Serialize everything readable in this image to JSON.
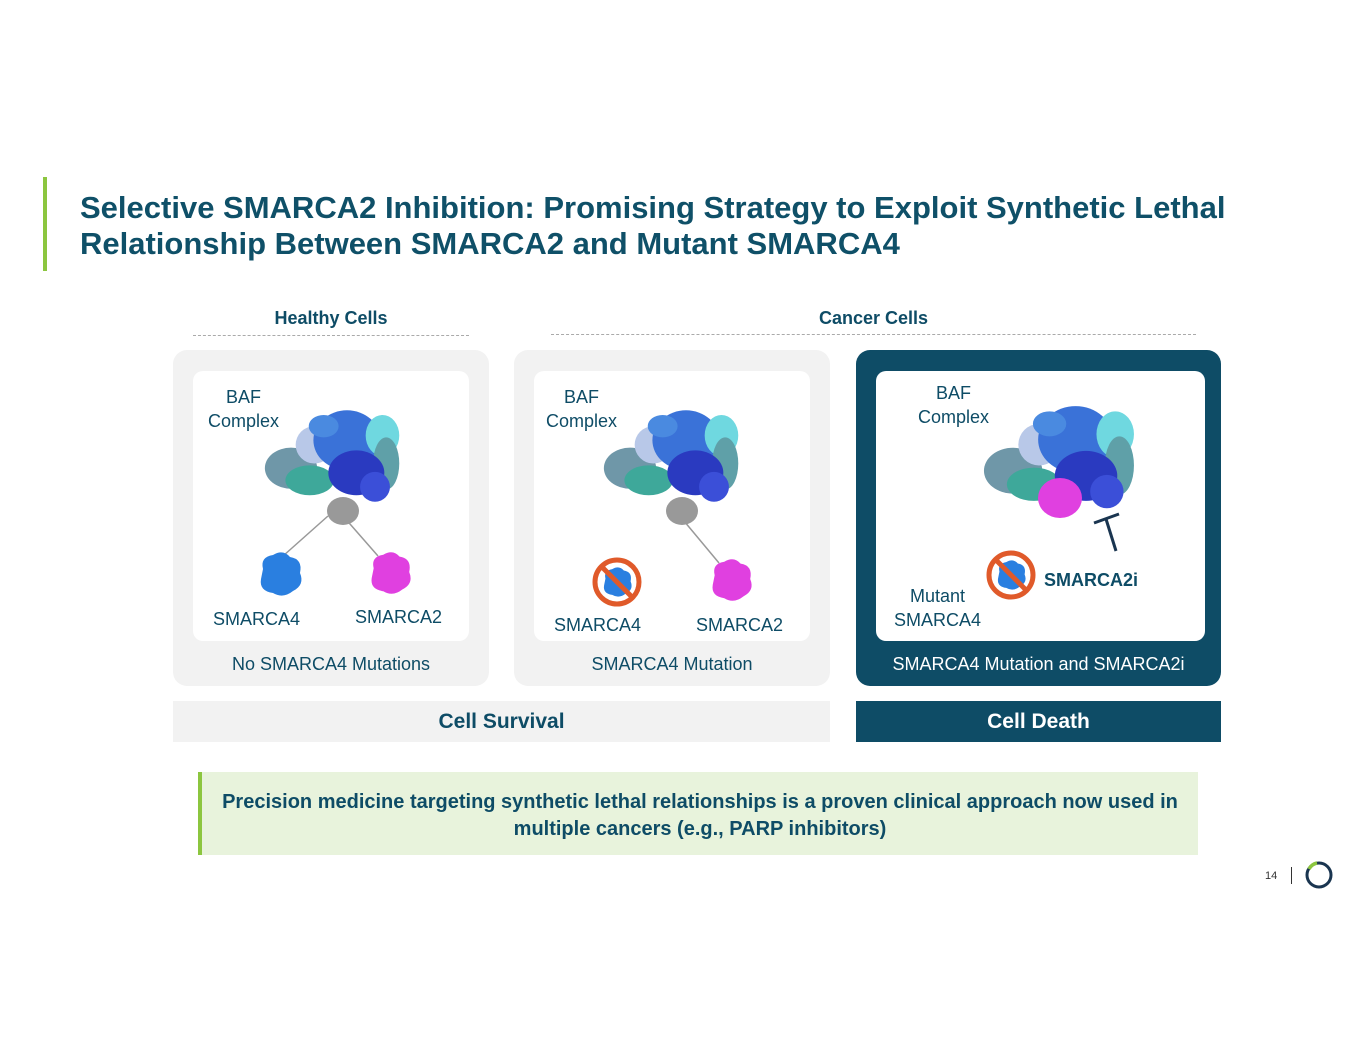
{
  "title": "Selective SMARCA2 Inhibition: Promising Strategy to Exploit Synthetic Lethal Relationship Between SMARCA2 and Mutant SMARCA4",
  "sections": {
    "healthy": "Healthy Cells",
    "cancer": "Cancer Cells"
  },
  "panels": [
    {
      "complex_label": "BAF\nComplex",
      "left_label": "SMARCA4",
      "right_label": "SMARCA2",
      "caption": "No SMARCA4 Mutations"
    },
    {
      "complex_label": "BAF\nComplex",
      "left_label": "SMARCA4",
      "right_label": "SMARCA2",
      "caption": "SMARCA4 Mutation"
    },
    {
      "complex_label": "BAF\nComplex",
      "left_label": "Mutant\nSMARCA4",
      "inhibitor_label": "SMARCA2i",
      "caption": "SMARCA4 Mutation and SMARCA2i"
    }
  ],
  "outcomes": {
    "survival": "Cell Survival",
    "death": "Cell Death"
  },
  "callout": "Precision medicine targeting synthetic lethal relationships is a proven clinical approach now used in multiple cancers (e.g., PARP inhibitors)",
  "page_number": "14",
  "colors": {
    "navy": "#0e4c66",
    "green": "#8cc63f",
    "smarca4": "#2a7fe0",
    "smarca2": "#e040e0",
    "no_sign": "#e05a2a"
  },
  "icons": [
    "baf-complex-icon",
    "smarca4-protein-icon",
    "smarca2-protein-icon",
    "prohibited-icon",
    "inhibition-icon",
    "logo-ring-icon"
  ]
}
